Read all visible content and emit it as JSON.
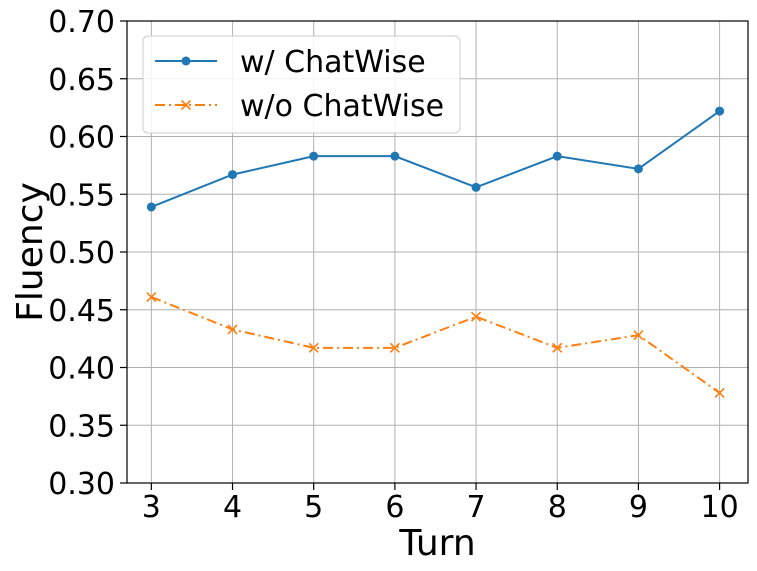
{
  "chart_data": {
    "type": "line",
    "x": [
      3,
      4,
      5,
      6,
      7,
      8,
      9,
      10
    ],
    "series": [
      {
        "name": "w/ ChatWise",
        "values": [
          0.539,
          0.567,
          0.583,
          0.583,
          0.556,
          0.583,
          0.572,
          0.622
        ],
        "color": "#1f77b4",
        "marker": "circle",
        "linestyle": "solid"
      },
      {
        "name": "w/o ChatWise",
        "values": [
          0.461,
          0.433,
          0.417,
          0.417,
          0.444,
          0.417,
          0.428,
          0.378
        ],
        "color": "#ff7f0e",
        "marker": "x",
        "linestyle": "dashdot"
      }
    ],
    "xticks": [
      "3",
      "4",
      "5",
      "6",
      "7",
      "8",
      "9",
      "10"
    ],
    "yticks": [
      "0.30",
      "0.35",
      "0.40",
      "0.45",
      "0.50",
      "0.55",
      "0.60",
      "0.65",
      "0.70"
    ],
    "xlabel": "Turn",
    "ylabel": "Fluency",
    "xlim": [
      2.7,
      10.35
    ],
    "ylim": [
      0.3,
      0.7
    ],
    "grid": true,
    "legend": "top-left"
  }
}
